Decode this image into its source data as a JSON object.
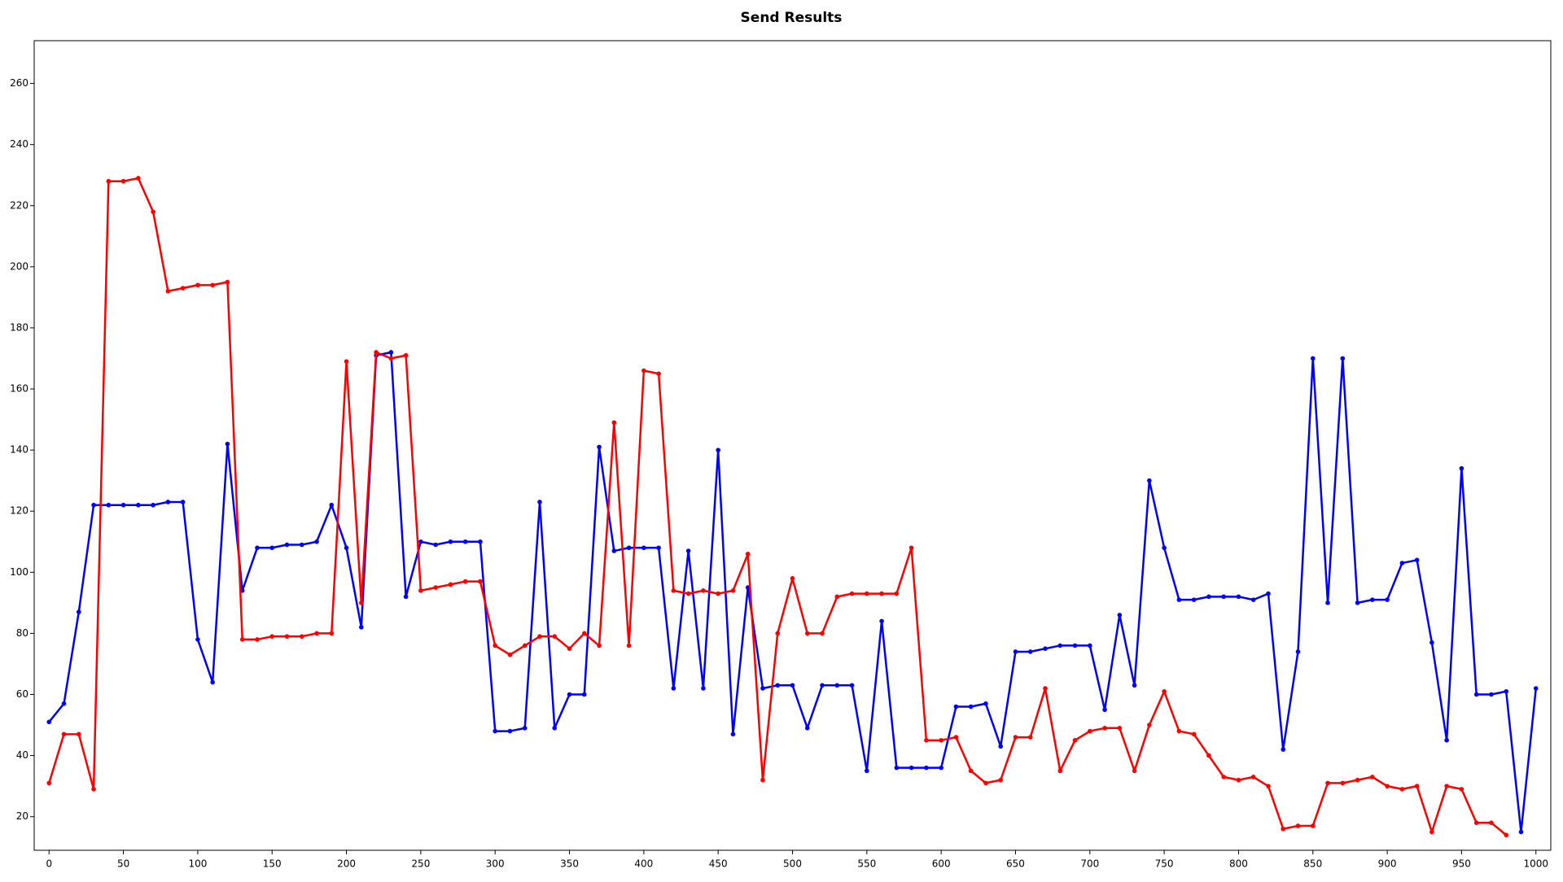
{
  "chart_data": {
    "type": "line",
    "title": "Send Results",
    "x": [
      0,
      10,
      20,
      30,
      40,
      50,
      60,
      70,
      80,
      90,
      100,
      110,
      120,
      130,
      140,
      150,
      160,
      170,
      180,
      190,
      200,
      210,
      220,
      230,
      240,
      250,
      260,
      270,
      280,
      290,
      300,
      310,
      320,
      330,
      340,
      350,
      360,
      370,
      380,
      390,
      400,
      410,
      420,
      430,
      440,
      450,
      460,
      470,
      480,
      490,
      500,
      510,
      520,
      530,
      540,
      550,
      560,
      570,
      580,
      590,
      600,
      610,
      620,
      630,
      640,
      650,
      660,
      670,
      680,
      690,
      700,
      710,
      720,
      730,
      740,
      750,
      760,
      770,
      780,
      790,
      800,
      810,
      820,
      830,
      840,
      850,
      860,
      870,
      880,
      890,
      900,
      910,
      920,
      930,
      940,
      950,
      960,
      970,
      980,
      990,
      1000
    ],
    "series": [
      {
        "color": "#0000ff",
        "values": [
          51,
          57,
          87,
          122,
          122,
          122,
          122,
          122,
          123,
          123,
          78,
          64,
          142,
          94,
          108,
          108,
          109,
          109,
          110,
          122,
          108,
          82,
          171,
          172,
          92,
          110,
          109,
          110,
          110,
          110,
          48,
          48,
          49,
          123,
          49,
          60,
          60,
          141,
          107,
          108,
          108,
          108,
          62,
          107,
          62,
          140,
          47,
          95,
          62,
          63,
          63,
          49,
          63,
          63,
          63,
          35,
          84,
          36,
          36,
          36,
          36,
          56,
          56,
          57,
          43,
          74,
          74,
          75,
          76,
          76,
          76,
          55,
          86,
          63,
          130,
          108,
          91,
          91,
          92,
          92,
          92,
          91,
          93,
          42,
          74,
          170,
          90,
          170,
          90,
          91,
          91,
          103,
          104,
          77,
          45,
          134,
          60,
          60,
          61,
          15,
          62
        ]
      },
      {
        "color": "#ff0000",
        "values": [
          31,
          47,
          47,
          29,
          228,
          228,
          229,
          218,
          192,
          193,
          194,
          194,
          195,
          78,
          78,
          79,
          79,
          79,
          80,
          80,
          169,
          90,
          172,
          170,
          171,
          94,
          95,
          96,
          97,
          97,
          76,
          73,
          76,
          79,
          79,
          75,
          80,
          76,
          149,
          76,
          166,
          165,
          94,
          93,
          94,
          93,
          94,
          106,
          32,
          80,
          98,
          80,
          80,
          92,
          93,
          93,
          93,
          93,
          108,
          45,
          45,
          46,
          35,
          31,
          32,
          46,
          46,
          62,
          35,
          45,
          48,
          49,
          49,
          35,
          50,
          61,
          48,
          47,
          40,
          33,
          32,
          33,
          30,
          16,
          17,
          17,
          31,
          31,
          32,
          33,
          30,
          29,
          30,
          15,
          30,
          29,
          18,
          18,
          14,
          null,
          null
        ]
      }
    ],
    "xlim": [
      -10,
      1010
    ],
    "ylim": [
      9,
      274
    ],
    "xticks": [
      0,
      50,
      100,
      150,
      200,
      250,
      300,
      350,
      400,
      450,
      500,
      550,
      600,
      650,
      700,
      750,
      800,
      850,
      900,
      950,
      1000
    ],
    "yticks": [
      20,
      40,
      60,
      80,
      100,
      120,
      140,
      160,
      180,
      200,
      220,
      240,
      260
    ]
  }
}
